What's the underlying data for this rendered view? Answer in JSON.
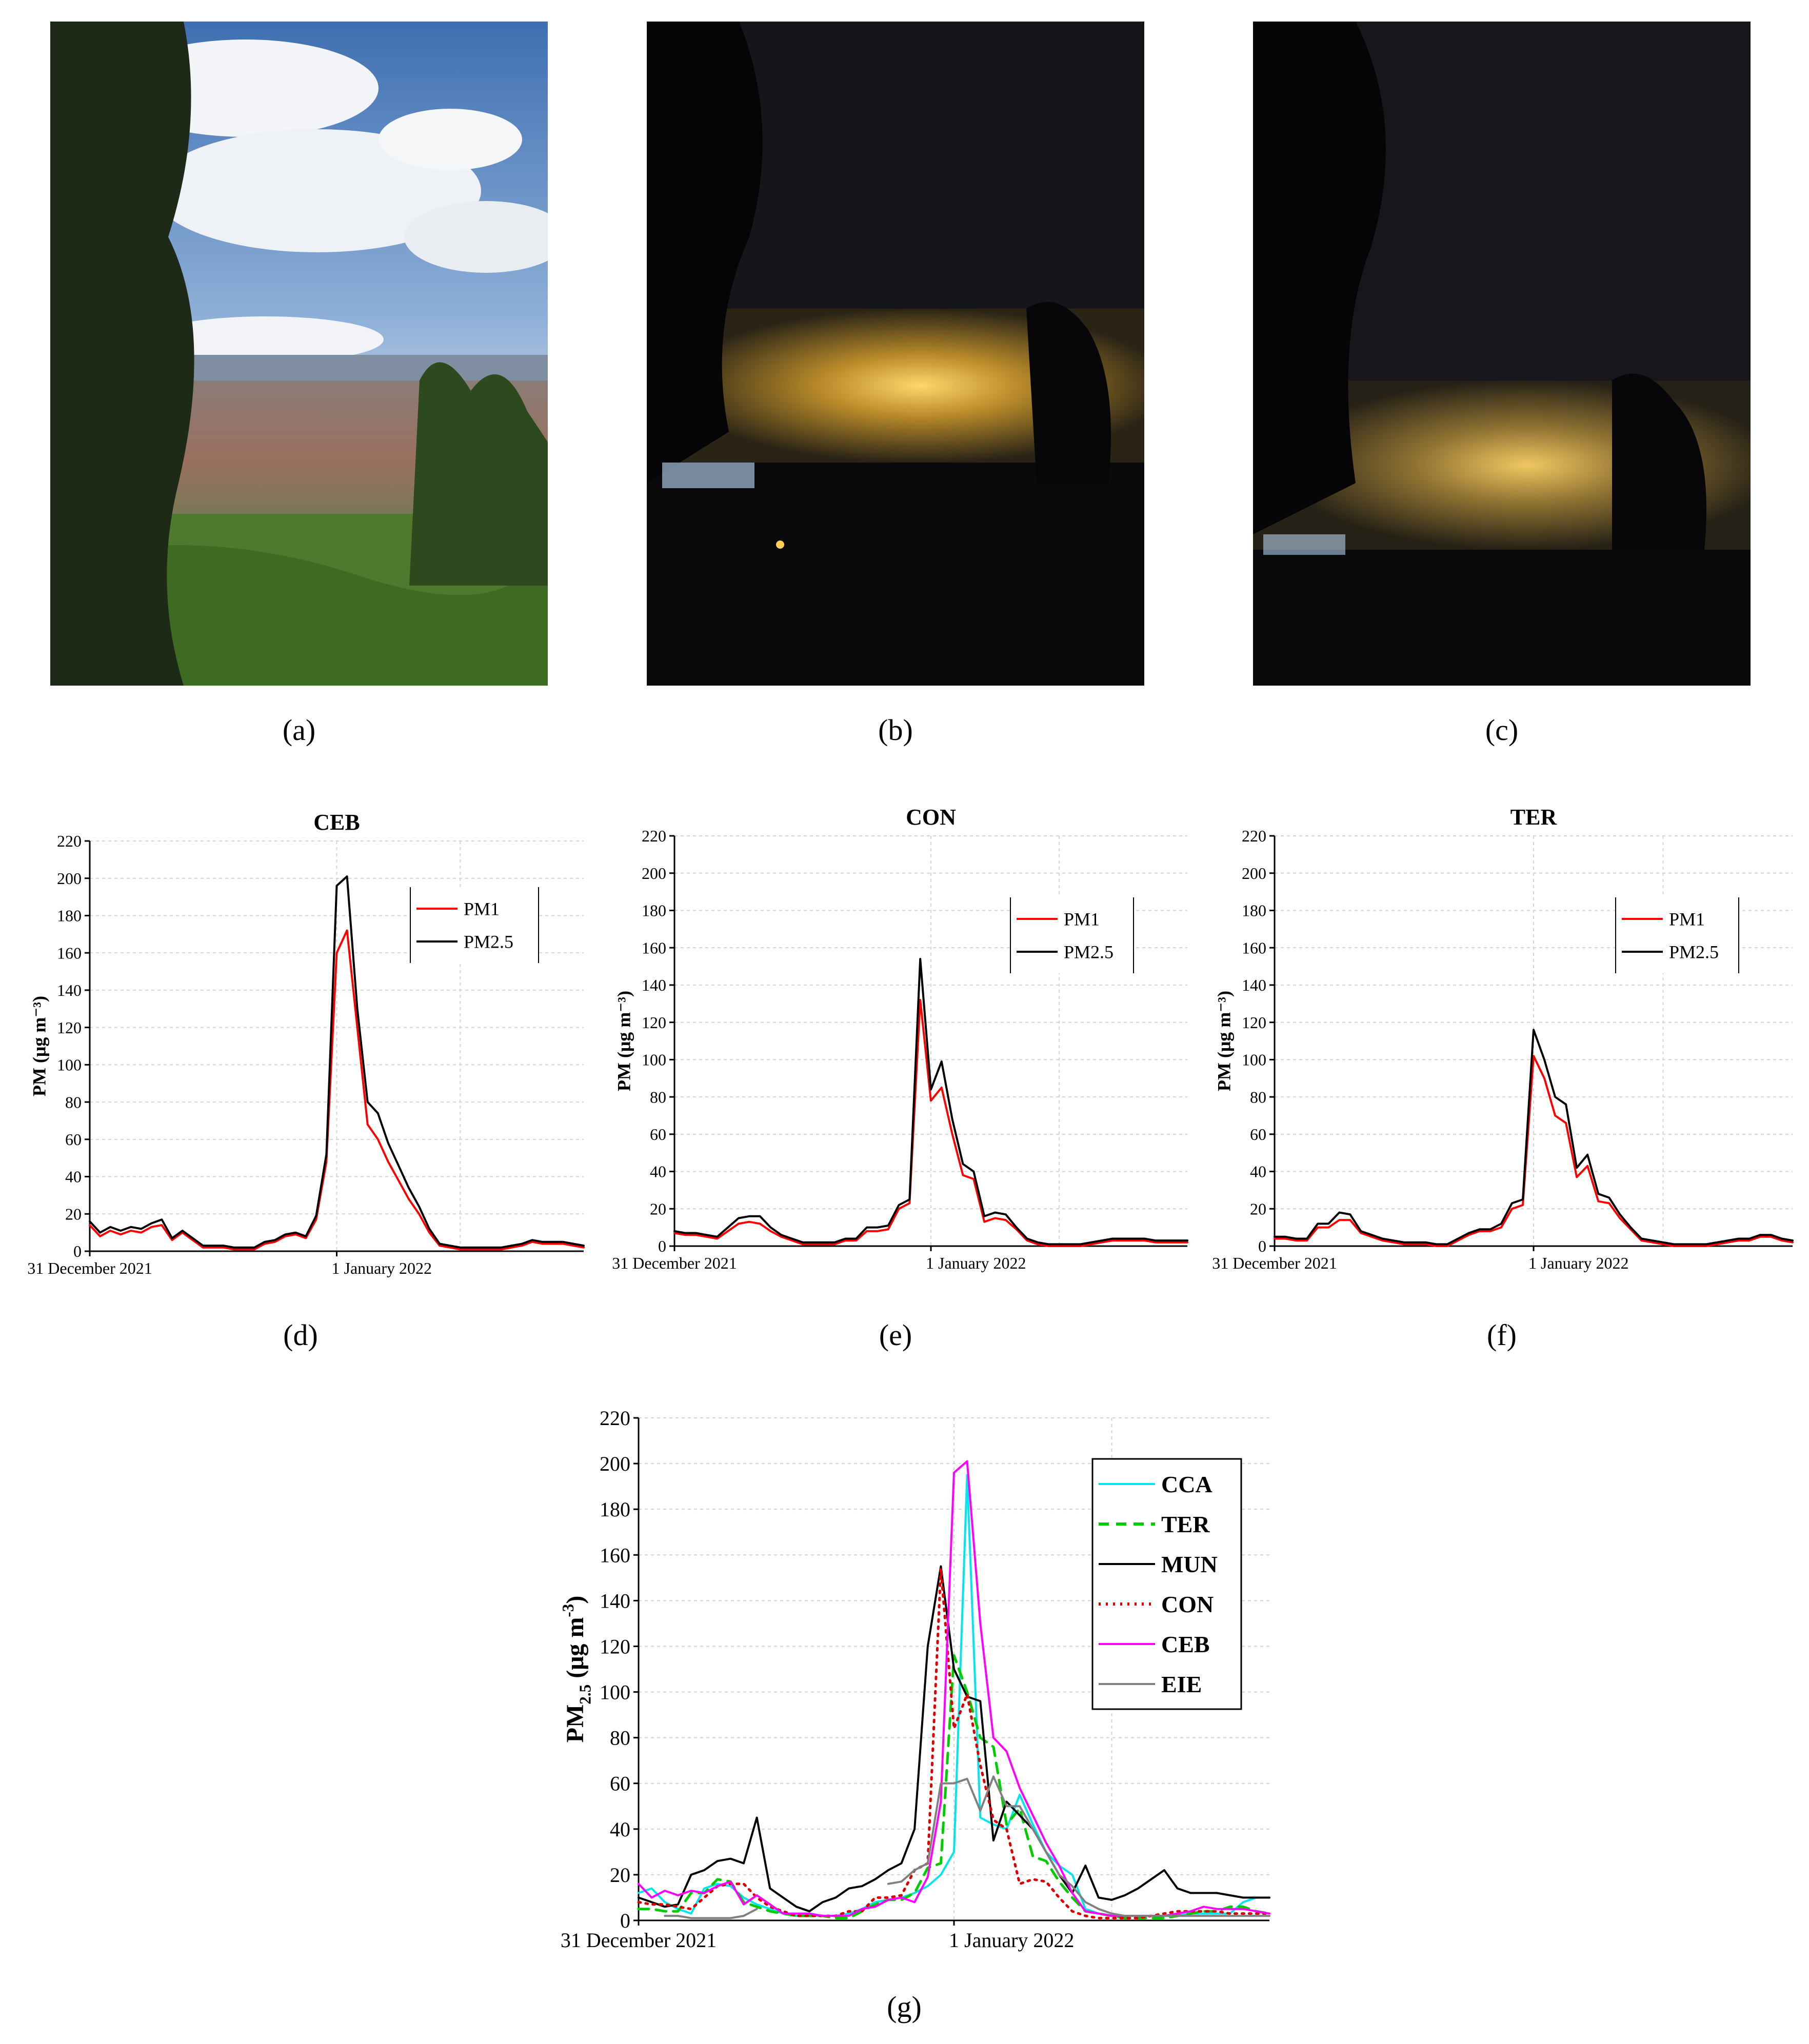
{
  "figure": {
    "labels": {
      "a": "(a)",
      "b": "(b)",
      "c": "(c)",
      "d": "(d)",
      "e": "(e)",
      "f": "(f)",
      "g": "(g)"
    }
  },
  "colors": {
    "pm1": "#ff0000",
    "pm25": "#000000",
    "CCA": "#00e5ee",
    "TER": "#00cc00",
    "MUN": "#000000",
    "CON": "#dd0000",
    "CEB": "#ff00ff",
    "EIE": "#808080"
  },
  "chart_data": [
    {
      "id": "d",
      "type": "line",
      "title": "CEB",
      "xlabel": "",
      "ylabel": "PM (μg m⁻³)",
      "ylim": [
        0,
        220
      ],
      "yticks": [
        0,
        20,
        40,
        60,
        80,
        100,
        120,
        140,
        160,
        180,
        200,
        220
      ],
      "xlim": [
        0,
        48
      ],
      "x_ticks": [
        {
          "x": 0,
          "label": "31 December 2021"
        },
        {
          "x": 24,
          "label": "1 January 2022"
        }
      ],
      "grid": true,
      "legend": "top-right",
      "x": [
        0,
        1,
        2,
        3,
        4,
        5,
        6,
        7,
        8,
        9,
        10,
        11,
        12,
        13,
        14,
        15,
        16,
        17,
        18,
        19,
        20,
        21,
        22,
        23,
        24,
        25,
        26,
        27,
        28,
        29,
        30,
        31,
        32,
        33,
        34,
        35,
        36,
        37,
        38,
        39,
        40,
        41,
        42,
        43,
        44,
        45,
        46,
        47,
        48
      ],
      "series": [
        {
          "name": "PM1",
          "color": "#ff0000",
          "values": [
            14,
            8,
            11,
            9,
            11,
            10,
            13,
            14,
            6,
            10,
            6,
            2,
            2,
            2,
            1,
            1,
            1,
            4,
            5,
            8,
            9,
            7,
            17,
            48,
            160,
            172,
            120,
            68,
            60,
            48,
            38,
            28,
            20,
            10,
            3,
            2,
            1,
            1,
            1,
            1,
            1,
            2,
            3,
            5,
            4,
            4,
            4,
            3,
            2
          ]
        },
        {
          "name": "PM2.5",
          "color": "#000000",
          "values": [
            16,
            10,
            13,
            11,
            13,
            12,
            15,
            17,
            7,
            11,
            7,
            3,
            3,
            3,
            2,
            2,
            2,
            5,
            6,
            9,
            10,
            8,
            19,
            52,
            196,
            201,
            130,
            80,
            74,
            58,
            46,
            34,
            24,
            12,
            4,
            3,
            2,
            2,
            2,
            2,
            2,
            3,
            4,
            6,
            5,
            5,
            5,
            4,
            3
          ]
        }
      ]
    },
    {
      "id": "e",
      "type": "line",
      "title": "CON",
      "xlabel": "",
      "ylabel": "PM (μg m⁻³)",
      "ylim": [
        0,
        220
      ],
      "yticks": [
        0,
        20,
        40,
        60,
        80,
        100,
        120,
        140,
        160,
        180,
        200,
        220
      ],
      "xlim": [
        0,
        48
      ],
      "x_ticks": [
        {
          "x": 0,
          "label": "31 December 2021"
        },
        {
          "x": 24,
          "label": "1 January 2022"
        }
      ],
      "grid": true,
      "legend": "top-right",
      "x": [
        0,
        1,
        2,
        3,
        4,
        5,
        6,
        7,
        8,
        9,
        10,
        11,
        12,
        13,
        14,
        15,
        16,
        17,
        18,
        19,
        20,
        21,
        22,
        23,
        24,
        25,
        26,
        27,
        28,
        29,
        30,
        31,
        32,
        33,
        34,
        35,
        36,
        37,
        38,
        39,
        40,
        41,
        42,
        43,
        44,
        45,
        46,
        47,
        48
      ],
      "series": [
        {
          "name": "PM1",
          "color": "#ff0000",
          "values": [
            7,
            6,
            6,
            5,
            4,
            8,
            12,
            13,
            12,
            8,
            5,
            3,
            1,
            1,
            1,
            1,
            3,
            3,
            8,
            8,
            9,
            20,
            23,
            132,
            78,
            85,
            60,
            38,
            36,
            13,
            15,
            14,
            9,
            3,
            1,
            0,
            0,
            0,
            0,
            1,
            2,
            3,
            3,
            3,
            3,
            2,
            2,
            2,
            2
          ]
        },
        {
          "name": "PM2.5",
          "color": "#000000",
          "values": [
            8,
            7,
            7,
            6,
            5,
            10,
            15,
            16,
            16,
            10,
            6,
            4,
            2,
            2,
            2,
            2,
            4,
            4,
            10,
            10,
            11,
            22,
            25,
            154,
            84,
            99,
            68,
            44,
            40,
            16,
            18,
            17,
            10,
            4,
            2,
            1,
            1,
            1,
            1,
            2,
            3,
            4,
            4,
            4,
            4,
            3,
            3,
            3,
            3
          ]
        }
      ]
    },
    {
      "id": "f",
      "type": "line",
      "title": "TER",
      "xlabel": "",
      "ylabel": "PM (μg m⁻³)",
      "ylim": [
        0,
        220
      ],
      "yticks": [
        0,
        20,
        40,
        60,
        80,
        100,
        120,
        140,
        160,
        180,
        200,
        220
      ],
      "xlim": [
        0,
        48
      ],
      "x_ticks": [
        {
          "x": 0,
          "label": "31 December 2021"
        },
        {
          "x": 24,
          "label": "1 January 2022"
        }
      ],
      "grid": true,
      "legend": "top-right",
      "x": [
        0,
        1,
        2,
        3,
        4,
        5,
        6,
        7,
        8,
        9,
        10,
        11,
        12,
        13,
        14,
        15,
        16,
        17,
        18,
        19,
        20,
        21,
        22,
        23,
        24,
        25,
        26,
        27,
        28,
        29,
        30,
        31,
        32,
        33,
        34,
        35,
        36,
        37,
        38,
        39,
        40,
        41,
        42,
        43,
        44,
        45,
        46,
        47,
        48
      ],
      "series": [
        {
          "name": "PM1",
          "color": "#ff0000",
          "values": [
            4,
            4,
            3,
            3,
            10,
            10,
            14,
            14,
            7,
            5,
            3,
            2,
            1,
            1,
            1,
            0,
            0,
            3,
            6,
            8,
            8,
            10,
            20,
            22,
            102,
            90,
            70,
            66,
            37,
            43,
            24,
            23,
            15,
            9,
            3,
            2,
            1,
            0,
            0,
            0,
            0,
            1,
            2,
            3,
            3,
            5,
            5,
            3,
            2
          ]
        },
        {
          "name": "PM2.5",
          "color": "#000000",
          "values": [
            5,
            5,
            4,
            4,
            12,
            12,
            18,
            17,
            8,
            6,
            4,
            3,
            2,
            2,
            2,
            1,
            1,
            4,
            7,
            9,
            9,
            12,
            23,
            25,
            116,
            100,
            80,
            76,
            42,
            49,
            28,
            26,
            17,
            10,
            4,
            3,
            2,
            1,
            1,
            1,
            1,
            2,
            3,
            4,
            4,
            6,
            6,
            4,
            3
          ]
        }
      ]
    },
    {
      "id": "g",
      "type": "line",
      "title": "",
      "xlabel": "",
      "ylabel": "PM2.5 (μg m⁻³)",
      "ylabel_main": "PM",
      "ylabel_sub": "2.5",
      "ylabel_rest": "(μg m",
      "ylabel_sup": "-3",
      "ylabel_close": ")",
      "ylim": [
        0,
        220
      ],
      "yticks": [
        0,
        20,
        40,
        60,
        80,
        100,
        120,
        140,
        160,
        180,
        200,
        220
      ],
      "xlim": [
        0,
        48
      ],
      "x_ticks": [
        {
          "x": 0,
          "label": "31 December 2021"
        },
        {
          "x": 24,
          "label": "1 January 2022"
        }
      ],
      "grid": true,
      "legend": "top-right",
      "x": [
        0,
        1,
        2,
        3,
        4,
        5,
        6,
        7,
        8,
        9,
        10,
        11,
        12,
        13,
        14,
        15,
        16,
        17,
        18,
        19,
        20,
        21,
        22,
        23,
        24,
        25,
        26,
        27,
        28,
        29,
        30,
        31,
        32,
        33,
        34,
        35,
        36,
        37,
        38,
        39,
        40,
        41,
        42,
        43,
        44,
        45,
        46,
        47,
        48
      ],
      "series": [
        {
          "name": "CCA",
          "color": "#00e5ee",
          "dash": "",
          "values": [
            12,
            14,
            8,
            5,
            3,
            14,
            16,
            15,
            10,
            7,
            5,
            3,
            2,
            2,
            2,
            2,
            3,
            5,
            8,
            9,
            10,
            12,
            15,
            20,
            30,
            195,
            45,
            42,
            40,
            55,
            42,
            30,
            24,
            20,
            5,
            3,
            2,
            2,
            2,
            2,
            2,
            2,
            3,
            3,
            3,
            3,
            8,
            10,
            10
          ]
        },
        {
          "name": "TER",
          "color": "#00cc00",
          "dash": "20,14",
          "values": [
            5,
            5,
            4,
            4,
            12,
            12,
            18,
            17,
            8,
            6,
            4,
            3,
            2,
            2,
            2,
            1,
            1,
            4,
            7,
            9,
            9,
            12,
            23,
            25,
            116,
            100,
            80,
            76,
            42,
            49,
            28,
            26,
            17,
            10,
            4,
            3,
            2,
            1,
            1,
            1,
            1,
            2,
            3,
            4,
            4,
            6,
            6,
            4,
            3
          ]
        },
        {
          "name": "MUN",
          "color": "#000000",
          "dash": "",
          "values": [
            10,
            8,
            6,
            7,
            20,
            22,
            26,
            27,
            25,
            45,
            14,
            10,
            6,
            4,
            8,
            10,
            14,
            15,
            18,
            22,
            25,
            40,
            120,
            155,
            110,
            98,
            96,
            35,
            52,
            46,
            40,
            30,
            20,
            12,
            24,
            10,
            9,
            11,
            14,
            18,
            22,
            14,
            12,
            12,
            12,
            11,
            10,
            10,
            10
          ]
        },
        {
          "name": "CON",
          "color": "#dd0000",
          "dash": "4,10",
          "values": [
            8,
            7,
            7,
            6,
            5,
            10,
            15,
            16,
            16,
            10,
            6,
            4,
            2,
            2,
            2,
            2,
            4,
            4,
            10,
            10,
            11,
            22,
            25,
            154,
            84,
            99,
            68,
            44,
            40,
            16,
            18,
            17,
            10,
            4,
            2,
            1,
            1,
            1,
            1,
            2,
            3,
            4,
            4,
            4,
            4,
            3,
            3,
            3,
            3
          ]
        },
        {
          "name": "CEB",
          "color": "#ff00ff",
          "dash": "",
          "values": [
            16,
            10,
            13,
            11,
            13,
            12,
            15,
            17,
            7,
            11,
            7,
            3,
            3,
            3,
            2,
            2,
            2,
            5,
            6,
            9,
            10,
            8,
            19,
            52,
            196,
            201,
            130,
            80,
            74,
            58,
            46,
            34,
            24,
            12,
            4,
            3,
            2,
            2,
            2,
            2,
            2,
            3,
            4,
            6,
            5,
            5,
            5,
            4,
            3
          ]
        },
        {
          "name": "EIE",
          "color": "#808080",
          "dash": "",
          "values": [
            null,
            null,
            2,
            2,
            1,
            1,
            1,
            1,
            2,
            5,
            null,
            null,
            null,
            null,
            null,
            null,
            null,
            null,
            null,
            16,
            17,
            22,
            25,
            60,
            60,
            62,
            48,
            63,
            50,
            50,
            40,
            30,
            20,
            15,
            8,
            5,
            3,
            2,
            2,
            2,
            2,
            2,
            2,
            2,
            2,
            2,
            2,
            2,
            2
          ]
        }
      ]
    }
  ]
}
